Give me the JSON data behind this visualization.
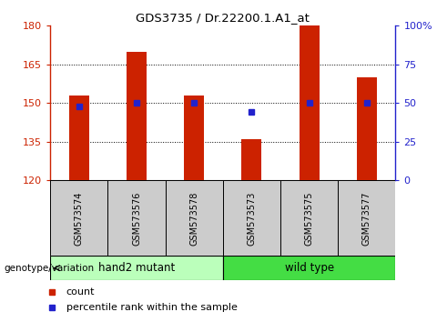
{
  "title": "GDS3735 / Dr.22200.1.A1_at",
  "samples": [
    "GSM573574",
    "GSM573576",
    "GSM573578",
    "GSM573573",
    "GSM573575",
    "GSM573577"
  ],
  "counts": [
    153,
    170,
    153,
    136,
    180,
    160
  ],
  "percentiles": [
    48,
    50,
    50,
    44,
    50,
    50
  ],
  "ylim_left": [
    120,
    180
  ],
  "ylim_right": [
    0,
    100
  ],
  "yticks_left": [
    120,
    135,
    150,
    165,
    180
  ],
  "yticks_right": [
    0,
    25,
    50,
    75,
    100
  ],
  "grid_lines": [
    135,
    150,
    165
  ],
  "bar_color": "#cc2200",
  "dot_color": "#2222cc",
  "group1_label": "hand2 mutant",
  "group2_label": "wild type",
  "group1_color": "#bbffbb",
  "group2_color": "#44dd44",
  "group1_indices": [
    0,
    1,
    2
  ],
  "group2_indices": [
    3,
    4,
    5
  ],
  "bar_width": 0.35,
  "baseline": 120,
  "legend_count_label": "count",
  "legend_pct_label": "percentile rank within the sample",
  "genotype_label": "genotype/variation",
  "label_color": "#888888",
  "tick_bg_color": "#cccccc"
}
